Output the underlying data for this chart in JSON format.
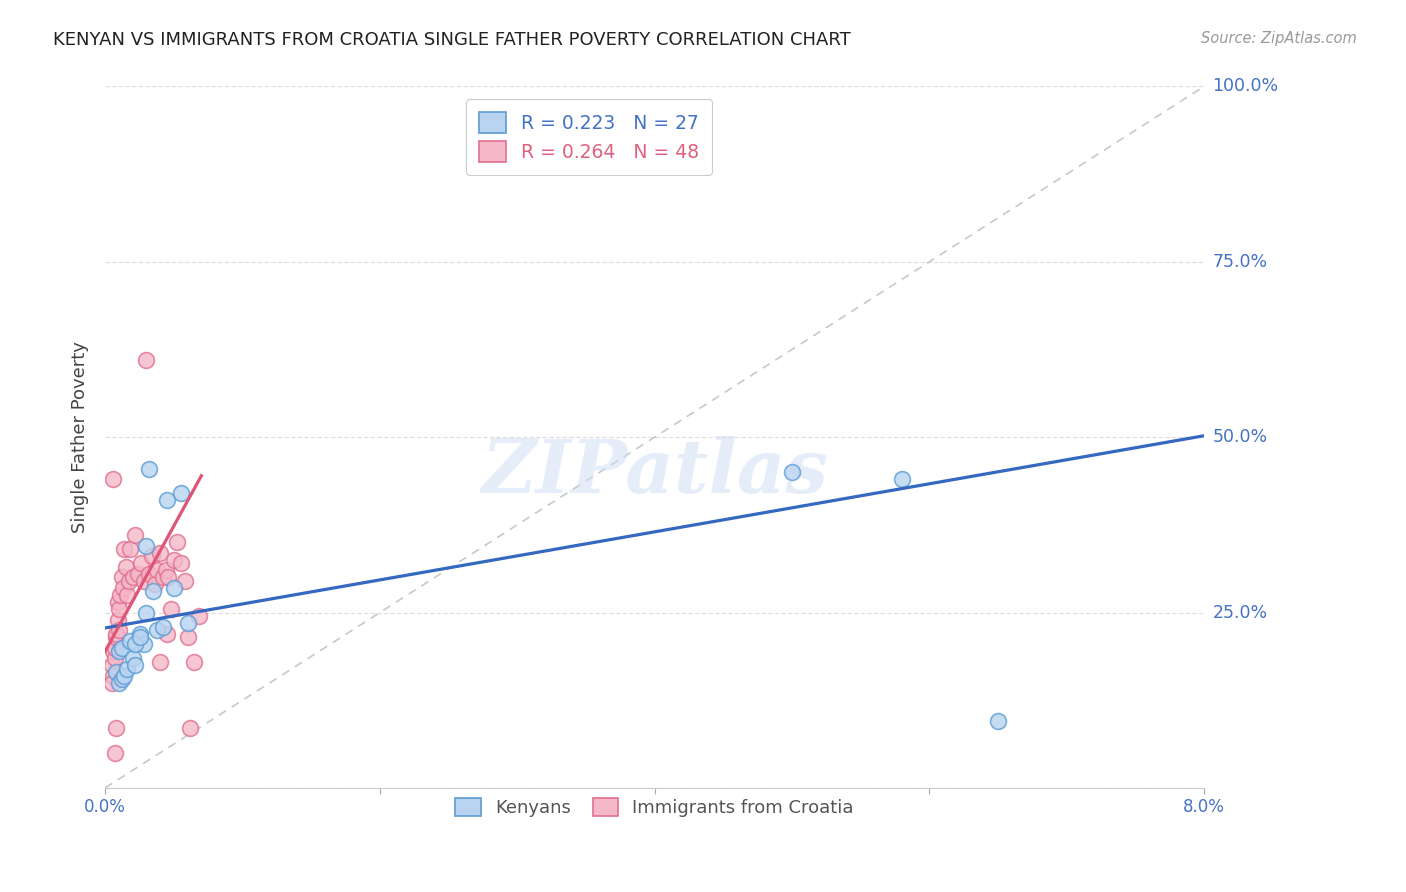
{
  "title": "KENYAN VS IMMIGRANTS FROM CROATIA SINGLE FATHER POVERTY CORRELATION CHART",
  "source": "Source: ZipAtlas.com",
  "ylabel": "Single Father Poverty",
  "yticks": [
    0.0,
    0.25,
    0.5,
    0.75,
    1.0
  ],
  "ytick_labels": [
    "",
    "25.0%",
    "50.0%",
    "75.0%",
    "100.0%"
  ],
  "xlim": [
    0.0,
    0.08
  ],
  "ylim": [
    0.0,
    1.0
  ],
  "legend_entries": [
    {
      "label": "R = 0.223   N = 27",
      "color": "#4472c4"
    },
    {
      "label": "R = 0.264   N = 48",
      "color": "#e06080"
    }
  ],
  "legend_categories": [
    "Kenyans",
    "Immigrants from Croatia"
  ],
  "watermark": "ZIPatlas",
  "background_color": "#ffffff",
  "grid_color": "#cccccc",
  "scatter_blue": {
    "x": [
      0.0008,
      0.001,
      0.0012,
      0.0014,
      0.0016,
      0.001,
      0.0012,
      0.0018,
      0.002,
      0.0022,
      0.0025,
      0.0028,
      0.003,
      0.0032,
      0.0035,
      0.0022,
      0.0025,
      0.003,
      0.0038,
      0.0042,
      0.0045,
      0.005,
      0.0055,
      0.006,
      0.05,
      0.058,
      0.065
    ],
    "y": [
      0.165,
      0.15,
      0.155,
      0.16,
      0.17,
      0.195,
      0.2,
      0.21,
      0.185,
      0.175,
      0.22,
      0.205,
      0.25,
      0.455,
      0.28,
      0.205,
      0.215,
      0.345,
      0.225,
      0.23,
      0.41,
      0.285,
      0.42,
      0.235,
      0.45,
      0.44,
      0.095
    ]
  },
  "scatter_pink": {
    "x": [
      0.0005,
      0.0006,
      0.0006,
      0.0007,
      0.0007,
      0.0008,
      0.0008,
      0.0009,
      0.0009,
      0.001,
      0.001,
      0.0011,
      0.0012,
      0.0013,
      0.0014,
      0.0015,
      0.0016,
      0.0017,
      0.0018,
      0.002,
      0.0022,
      0.0024,
      0.0026,
      0.0028,
      0.003,
      0.0032,
      0.0034,
      0.0036,
      0.0038,
      0.004,
      0.0042,
      0.0044,
      0.0046,
      0.0048,
      0.005,
      0.0052,
      0.0055,
      0.0058,
      0.006,
      0.0062,
      0.0065,
      0.0068,
      0.0005,
      0.0006,
      0.0007,
      0.0008,
      0.004,
      0.0045
    ],
    "y": [
      0.175,
      0.16,
      0.195,
      0.185,
      0.2,
      0.215,
      0.22,
      0.24,
      0.265,
      0.225,
      0.255,
      0.275,
      0.3,
      0.285,
      0.34,
      0.315,
      0.275,
      0.295,
      0.34,
      0.3,
      0.36,
      0.305,
      0.32,
      0.295,
      0.61,
      0.305,
      0.33,
      0.29,
      0.31,
      0.335,
      0.3,
      0.31,
      0.3,
      0.255,
      0.325,
      0.35,
      0.32,
      0.295,
      0.215,
      0.085,
      0.18,
      0.245,
      0.15,
      0.44,
      0.05,
      0.085,
      0.18,
      0.22
    ]
  },
  "blue_line": {
    "x0": 0.0,
    "y0": 0.228,
    "x1": 0.08,
    "y1": 0.502
  },
  "pink_line": {
    "x0": 0.0,
    "y0": 0.195,
    "x1": 0.007,
    "y1": 0.445
  },
  "ref_line": {
    "x0": 0.0,
    "y0": 0.0,
    "x1": 0.08,
    "y1": 1.0
  }
}
